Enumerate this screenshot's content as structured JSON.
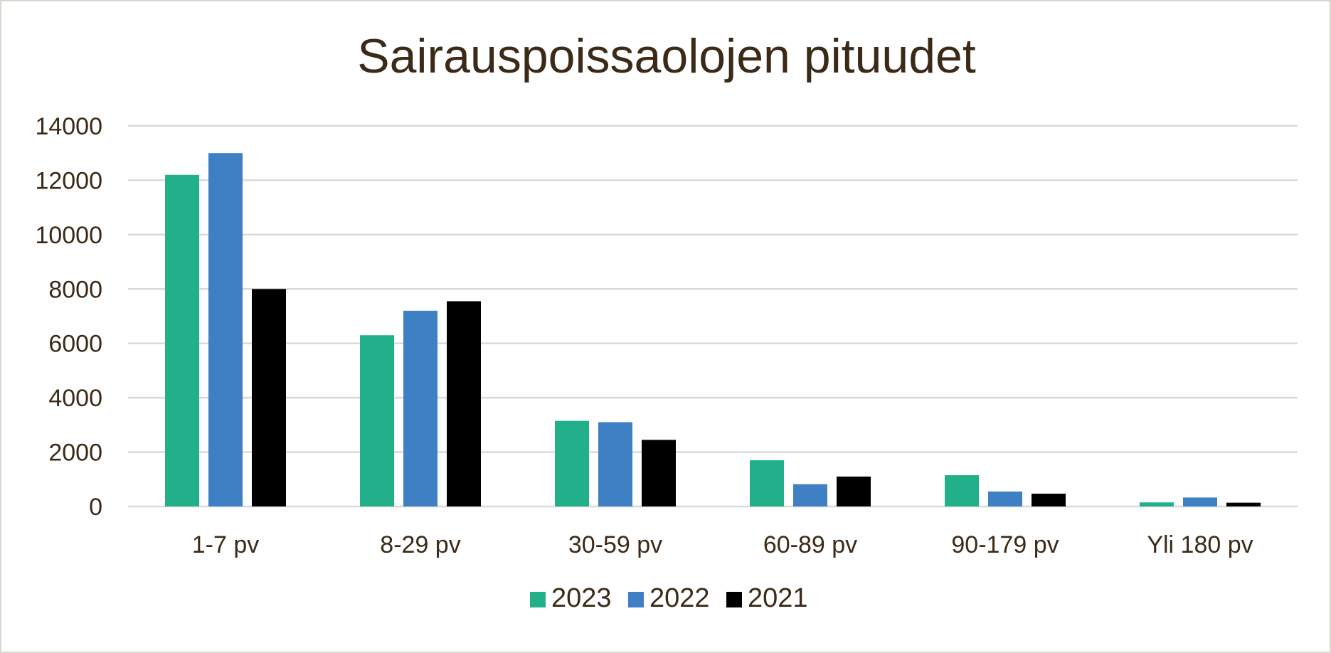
{
  "chart_data": {
    "type": "bar",
    "title": "Sairauspoissaolojen pituudet",
    "xlabel": "",
    "ylabel": "",
    "categories": [
      "1-7 pv",
      "8-29 pv",
      "30-59 pv",
      "60-89 pv",
      "90-179 pv",
      "Yli 180 pv"
    ],
    "series": [
      {
        "name": "2023",
        "color": "#21b08a",
        "values": [
          12200,
          6300,
          3150,
          1700,
          1150,
          150
        ]
      },
      {
        "name": "2022",
        "color": "#3f80c4",
        "values": [
          13000,
          7200,
          3100,
          820,
          550,
          330
        ]
      },
      {
        "name": "2021",
        "color": "#000000",
        "values": [
          8000,
          7550,
          2450,
          1100,
          470,
          140
        ]
      }
    ],
    "ylim": [
      0,
      14000
    ],
    "yticks": [
      0,
      2000,
      4000,
      6000,
      8000,
      10000,
      12000,
      14000
    ],
    "yticks_labels": [
      "0",
      "2000",
      "4000",
      "6000",
      "8000",
      "10000",
      "12000",
      "14000"
    ],
    "grid": true,
    "legend_position": "bottom",
    "gridline_color": "#d9d9d9",
    "text_color": "#3b2a17"
  }
}
